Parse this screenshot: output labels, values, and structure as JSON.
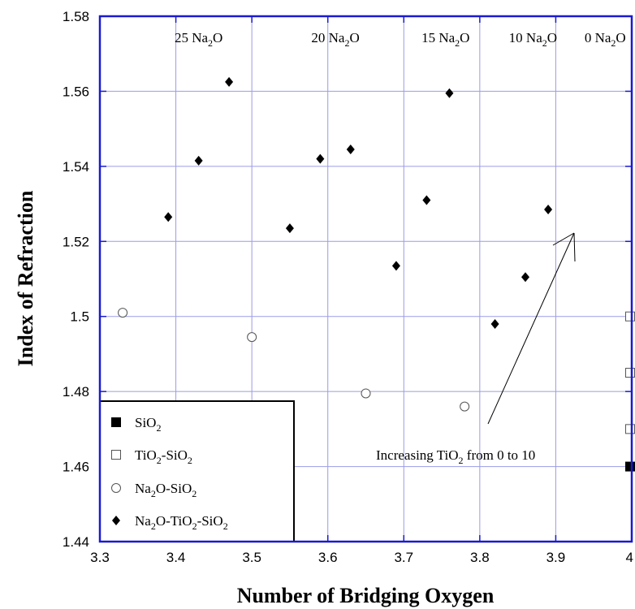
{
  "chart_data": {
    "type": "scatter",
    "xlabel": "Number of Bridging Oxygen",
    "ylabel": "Index of Refraction",
    "xlim": [
      3.3,
      4.0
    ],
    "ylim": [
      1.44,
      1.58
    ],
    "grid": true,
    "x_ticks": [
      "3.3",
      "3.4",
      "3.5",
      "3.6",
      "3.7",
      "3.8",
      "3.9",
      "4"
    ],
    "y_ticks": [
      "1.44",
      "1.46",
      "1.48",
      "1.5",
      "1.52",
      "1.54",
      "1.56",
      "1.58"
    ],
    "top_labels": [
      {
        "x": 3.43,
        "main": "25 Na",
        "sub": "2",
        "tail": "O"
      },
      {
        "x": 3.61,
        "main": "20 Na",
        "sub": "2",
        "tail": "O"
      },
      {
        "x": 3.755,
        "main": "15 Na",
        "sub": "2",
        "tail": "O"
      },
      {
        "x": 3.87,
        "main": "10 Na",
        "sub": "2",
        "tail": "O"
      },
      {
        "x": 3.965,
        "main": "0 Na",
        "sub": "2",
        "tail": "O"
      }
    ],
    "series": [
      {
        "legend_parts": [
          "SiO",
          "2",
          ""
        ],
        "marker": "square-filled",
        "points": [
          [
            4.0,
            1.46
          ]
        ]
      },
      {
        "legend_parts": [
          "TiO",
          "2",
          "-SiO",
          "2"
        ],
        "marker": "square-open",
        "points": [
          [
            4.0,
            1.47
          ],
          [
            4.0,
            1.485
          ],
          [
            4.0,
            1.5
          ]
        ]
      },
      {
        "legend_parts": [
          "Na",
          "2",
          "O-SiO",
          "2"
        ],
        "marker": "circle-open",
        "points": [
          [
            3.33,
            1.501
          ],
          [
            3.5,
            1.4945
          ],
          [
            3.65,
            1.4795
          ],
          [
            3.78,
            1.476
          ]
        ]
      },
      {
        "legend_parts": [
          "Na",
          "2",
          "O-TiO",
          "2",
          "-SiO",
          "2"
        ],
        "marker": "diamond-filled",
        "points": [
          [
            3.39,
            1.5265
          ],
          [
            3.43,
            1.5415
          ],
          [
            3.47,
            1.5625
          ],
          [
            3.55,
            1.5235
          ],
          [
            3.59,
            1.542
          ],
          [
            3.63,
            1.5445
          ],
          [
            3.69,
            1.5135
          ],
          [
            3.73,
            1.531
          ],
          [
            3.76,
            1.5595
          ],
          [
            3.82,
            1.498
          ],
          [
            3.86,
            1.5105
          ],
          [
            3.89,
            1.5285
          ]
        ]
      }
    ],
    "annotation": {
      "parts": [
        "Increasing TiO",
        "2",
        " from 0 to 10"
      ]
    },
    "legend_placement": "bottom-left"
  }
}
